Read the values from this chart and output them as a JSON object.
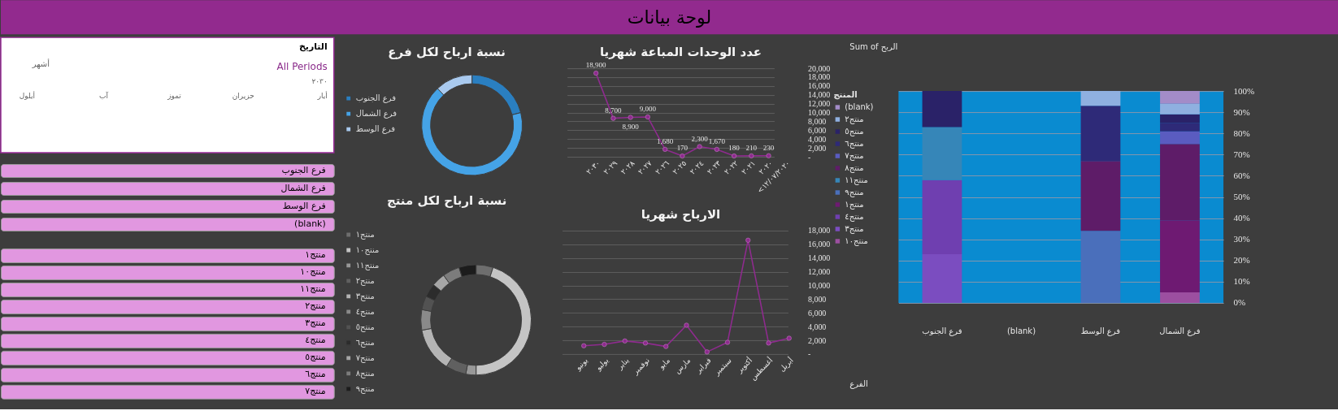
{
  "chart_data": [
    {
      "type": "other",
      "title": "لوحة بيانات"
    },
    {
      "type": "other",
      "title": "التاريخ",
      "annotations": [
        "All Periods",
        "أشهر",
        "٢٠٣٠",
        "أيار",
        "حزيران",
        "تموز",
        "آب",
        "أيلول"
      ]
    },
    {
      "type": "other",
      "annotations": [
        "فرع الجنوب",
        "فرع الشمال",
        "فرع الوسط",
        "(blank)"
      ]
    },
    {
      "type": "other",
      "annotations": [
        "منتج١",
        "منتج١٠",
        "منتج١١",
        "منتج٢",
        "منتج٣",
        "منتج٤",
        "منتج٥",
        "منتج٦",
        "منتج٧"
      ]
    },
    {
      "type": "donut",
      "title": "نسبة ارباح لكل فرع",
      "categories": [
        "فرع الجنوب",
        "فرع الشمال",
        "فرع الوسط"
      ],
      "values": [
        21,
        67,
        12
      ],
      "colors": [
        "#2a7fc1",
        "#45a3e7",
        "#a9caef"
      ],
      "legend": "left"
    },
    {
      "type": "donut",
      "title": "نسبة ارباح لكل  منتج",
      "categories": [
        "منتج١",
        "منتج١٠",
        "منتج١١",
        "منتج٢",
        "منتج٣",
        "منتج٤",
        "منتج٥",
        "منتج٦",
        "منتج٧",
        "منتج٨",
        "منتج٩"
      ],
      "values": [
        5,
        45,
        3,
        6,
        13,
        6,
        4,
        4,
        4,
        5,
        5
      ],
      "colors": [
        "#6e6e6e",
        "#c4c4c4",
        "#989898",
        "#606060",
        "#b4b4b4",
        "#8a8a8a",
        "#525252",
        "#2c2c2c",
        "#a6a6a6",
        "#7c7c7c",
        "#1c1c1c"
      ],
      "legend": "left"
    },
    {
      "type": "line",
      "title": "عدد الوحدات المباعة شهريا",
      "categories": [
        "٢٠٣٠",
        "٢٠٢٩",
        "٢٠٢٨",
        "٢٠٢٧",
        "٢٠٢٦",
        "٢٠٢٥",
        "٢٠٢٤",
        "٢٠٢٣",
        "٢٠٢٢",
        "٢٠٢١",
        "٢٠٢٠",
        "<١٢/٠٧/٢٠٢٠"
      ],
      "values": [
        18900,
        8700,
        8900,
        9000,
        1680,
        170,
        2300,
        1670,
        180,
        210,
        230,
        null
      ],
      "value_labels": [
        "18,900",
        "8,700",
        "8,900",
        "9,000",
        "1,680",
        "170",
        "2,300",
        "1,670",
        "180",
        "210",
        "230",
        null
      ],
      "color": "#8e2b8e",
      "marker": "circle",
      "grid": "y",
      "ylim": [
        0,
        20000
      ],
      "yticks": [
        {
          "value": 0,
          "label": "-"
        },
        {
          "value": 2000,
          "label": "2,000"
        },
        {
          "value": 4000,
          "label": "4,000"
        },
        {
          "value": 6000,
          "label": "6,000"
        },
        {
          "value": 8000,
          "label": "8,000"
        },
        {
          "value": 10000,
          "label": "10,000"
        },
        {
          "value": 12000,
          "label": "12,000"
        },
        {
          "value": 14000,
          "label": "14,000"
        },
        {
          "value": 16000,
          "label": "16,000"
        },
        {
          "value": 18000,
          "label": "18,000"
        },
        {
          "value": 20000,
          "label": "20,000"
        }
      ]
    },
    {
      "type": "line",
      "title": "الارباح شهريا",
      "categories": [
        "يونيو",
        "يوليو",
        "يناير",
        "نوفمبر",
        "مايو",
        "مارس",
        "فبراير",
        "سبتمبر",
        "أكتوبر",
        "أغسطس",
        "أبريل"
      ],
      "values": [
        1200,
        1400,
        1900,
        1600,
        1100,
        4200,
        300,
        1700,
        16600,
        1600,
        2300
      ],
      "color": "#8e2b8e",
      "marker": "circle",
      "grid": "y",
      "ylim": [
        0,
        18000
      ],
      "yticks": [
        {
          "value": 0,
          "label": "-"
        },
        {
          "value": 2000,
          "label": "2,000"
        },
        {
          "value": 4000,
          "label": "4,000"
        },
        {
          "value": 6000,
          "label": "6,000"
        },
        {
          "value": 8000,
          "label": "8,000"
        },
        {
          "value": 10000,
          "label": "10,000"
        },
        {
          "value": 12000,
          "label": "12,000"
        },
        {
          "value": 14000,
          "label": "14,000"
        },
        {
          "value": 16000,
          "label": "16,000"
        },
        {
          "value": 18000,
          "label": "18,000"
        }
      ]
    },
    {
      "type": "bar",
      "stacked": true,
      "categories": [
        "فرع الجنوب",
        "(blank)",
        "فرع الوسط",
        "فرع الشمال"
      ],
      "legend_title": "المنتج",
      "legend": "left",
      "grid": "y",
      "annotations": [
        "Sum of الربح",
        "الفرع"
      ],
      "ylim": [
        0,
        100
      ],
      "yticks": [
        {
          "value": 0,
          "label": "0%"
        },
        {
          "value": 10,
          "label": "10%"
        },
        {
          "value": 20,
          "label": "20%"
        },
        {
          "value": 30,
          "label": "30%"
        },
        {
          "value": 40,
          "label": "40%"
        },
        {
          "value": 50,
          "label": "50%"
        },
        {
          "value": 60,
          "label": "60%"
        },
        {
          "value": 70,
          "label": "70%"
        },
        {
          "value": 80,
          "label": "80%"
        },
        {
          "value": 90,
          "label": "90%"
        },
        {
          "value": 100,
          "label": "100%"
        }
      ],
      "series": [
        {
          "name": "منتج١٠",
          "color": "#9c4fa0",
          "values": [
            null,
            null,
            null,
            5
          ]
        },
        {
          "name": "منتج٣",
          "color": "#7b4dc0",
          "values": [
            23,
            null,
            null,
            null
          ]
        },
        {
          "name": "منتج٤",
          "color": "#6f3fb0",
          "values": [
            35,
            null,
            null,
            null
          ]
        },
        {
          "name": "منتج١",
          "color": "#6e1a72",
          "values": [
            null,
            null,
            null,
            34
          ]
        },
        {
          "name": "منتج٩",
          "color": "#4a6fbb",
          "values": [
            null,
            null,
            34,
            null
          ]
        },
        {
          "name": "منتج١١",
          "color": "#3686b8",
          "values": [
            25,
            null,
            null,
            null
          ]
        },
        {
          "name": "منتج٨",
          "color": "#5e1c68",
          "values": [
            null,
            null,
            33,
            36
          ]
        },
        {
          "name": "منتج٧",
          "color": "#5a5cc0",
          "values": [
            null,
            null,
            null,
            6
          ]
        },
        {
          "name": "منتج٦",
          "color": "#2e2a78",
          "values": [
            null,
            null,
            26,
            4
          ]
        },
        {
          "name": "منتج٥",
          "color": "#2a2268",
          "values": [
            17,
            null,
            null,
            4
          ]
        },
        {
          "name": "منتج٢",
          "color": "#8fb0e0",
          "values": [
            null,
            null,
            7,
            5
          ]
        },
        {
          "name": "(blank)",
          "color": "#a38cc8",
          "values": [
            null,
            null,
            null,
            6
          ]
        }
      ]
    }
  ]
}
